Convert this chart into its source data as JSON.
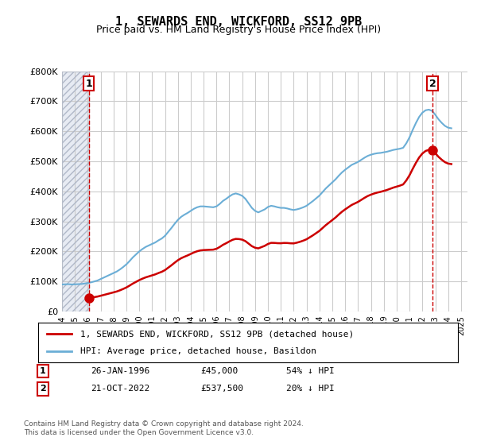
{
  "title": "1, SEWARDS END, WICKFORD, SS12 9PB",
  "subtitle": "Price paid vs. HM Land Registry's House Price Index (HPI)",
  "legend_line1": "1, SEWARDS END, WICKFORD, SS12 9PB (detached house)",
  "legend_line2": "HPI: Average price, detached house, Basildon",
  "annotation1": {
    "label": "1",
    "date_val": 1996.07,
    "price": 45000,
    "date_str": "26-JAN-1996",
    "price_str": "£45,000",
    "pct_str": "54% ↓ HPI"
  },
  "annotation2": {
    "label": "2",
    "date_val": 2022.8,
    "price": 537500,
    "date_str": "21-OCT-2022",
    "price_str": "£537,500",
    "pct_str": "20% ↓ HPI"
  },
  "copyright": "Contains HM Land Registry data © Crown copyright and database right 2024.\nThis data is licensed under the Open Government Licence v3.0.",
  "hpi_color": "#6baed6",
  "price_color": "#cc0000",
  "vline_color": "#cc0000",
  "hatch_color": "#d0d8e8",
  "grid_color": "#cccccc",
  "ylim": [
    0,
    800000
  ],
  "xlim": [
    1994.0,
    2025.5
  ],
  "hpi_data_x": [
    1994.0,
    1994.25,
    1994.5,
    1994.75,
    1995.0,
    1995.25,
    1995.5,
    1995.75,
    1996.0,
    1996.25,
    1996.5,
    1996.75,
    1997.0,
    1997.25,
    1997.5,
    1997.75,
    1998.0,
    1998.25,
    1998.5,
    1998.75,
    1999.0,
    1999.25,
    1999.5,
    1999.75,
    2000.0,
    2000.25,
    2000.5,
    2000.75,
    2001.0,
    2001.25,
    2001.5,
    2001.75,
    2002.0,
    2002.25,
    2002.5,
    2002.75,
    2003.0,
    2003.25,
    2003.5,
    2003.75,
    2004.0,
    2004.25,
    2004.5,
    2004.75,
    2005.0,
    2005.25,
    2005.5,
    2005.75,
    2006.0,
    2006.25,
    2006.5,
    2006.75,
    2007.0,
    2007.25,
    2007.5,
    2007.75,
    2008.0,
    2008.25,
    2008.5,
    2008.75,
    2009.0,
    2009.25,
    2009.5,
    2009.75,
    2010.0,
    2010.25,
    2010.5,
    2010.75,
    2011.0,
    2011.25,
    2011.5,
    2011.75,
    2012.0,
    2012.25,
    2012.5,
    2012.75,
    2013.0,
    2013.25,
    2013.5,
    2013.75,
    2014.0,
    2014.25,
    2014.5,
    2014.75,
    2015.0,
    2015.25,
    2015.5,
    2015.75,
    2016.0,
    2016.25,
    2016.5,
    2016.75,
    2017.0,
    2017.25,
    2017.5,
    2017.75,
    2018.0,
    2018.25,
    2018.5,
    2018.75,
    2019.0,
    2019.25,
    2019.5,
    2019.75,
    2020.0,
    2020.25,
    2020.5,
    2020.75,
    2021.0,
    2021.25,
    2021.5,
    2021.75,
    2022.0,
    2022.25,
    2022.5,
    2022.75,
    2023.0,
    2023.25,
    2023.5,
    2023.75,
    2024.0,
    2024.25
  ],
  "hpi_data_y": [
    90000,
    90500,
    91000,
    90000,
    90500,
    91000,
    91500,
    93000,
    95000,
    97000,
    100000,
    103000,
    108000,
    113000,
    118000,
    123000,
    128000,
    133000,
    140000,
    148000,
    157000,
    168000,
    180000,
    190000,
    200000,
    208000,
    215000,
    220000,
    225000,
    230000,
    237000,
    243000,
    252000,
    265000,
    278000,
    292000,
    305000,
    315000,
    322000,
    328000,
    335000,
    342000,
    347000,
    350000,
    350000,
    349000,
    348000,
    347000,
    350000,
    358000,
    368000,
    375000,
    383000,
    390000,
    393000,
    390000,
    385000,
    375000,
    360000,
    345000,
    335000,
    330000,
    335000,
    340000,
    348000,
    352000,
    350000,
    347000,
    345000,
    345000,
    343000,
    340000,
    338000,
    340000,
    343000,
    347000,
    352000,
    360000,
    368000,
    377000,
    386000,
    398000,
    410000,
    420000,
    430000,
    440000,
    452000,
    463000,
    472000,
    480000,
    488000,
    493000,
    498000,
    505000,
    512000,
    518000,
    522000,
    525000,
    527000,
    528000,
    530000,
    532000,
    535000,
    538000,
    540000,
    542000,
    545000,
    560000,
    580000,
    605000,
    628000,
    648000,
    662000,
    670000,
    672000,
    668000,
    655000,
    640000,
    628000,
    618000,
    612000,
    610000
  ],
  "price_data_x": [
    1996.07,
    2022.8
  ],
  "price_data_y": [
    45000,
    537500
  ]
}
